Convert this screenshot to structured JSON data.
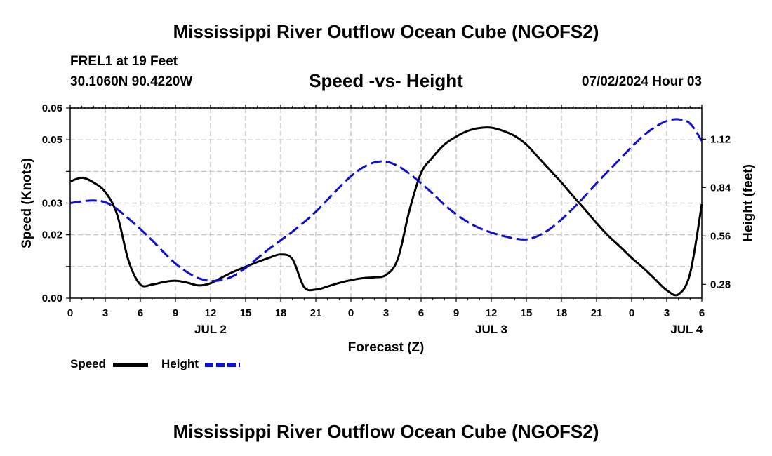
{
  "header": {
    "title": "Mississippi River Outflow Ocean Cube (NGOFS2)",
    "station": "FREL1 at 19 Feet",
    "coords": "30.1060N  90.4220W",
    "subtitle": "Speed -vs- Height",
    "datetime": "07/02/2024 Hour 03"
  },
  "footer": {
    "title": "Mississippi River Outflow Ocean Cube (NGOFS2)"
  },
  "legend": {
    "speed_label": "Speed",
    "height_label": "Height"
  },
  "colors": {
    "speed": "#000000",
    "height": "#1010d0",
    "grid": "#bbbbbb"
  },
  "chart_data": {
    "type": "line",
    "title": "Speed -vs- Height",
    "xlabel": "Forecast (Z)",
    "ylabel": "Speed (Knots)",
    "y2label": "Height (feet)",
    "xlim": [
      0,
      54
    ],
    "ylim": [
      0,
      0.06
    ],
    "y2lim": [
      0.2,
      1.3
    ],
    "x_ticks": [
      {
        "x": 0,
        "label": "0"
      },
      {
        "x": 3,
        "label": "3"
      },
      {
        "x": 6,
        "label": "6"
      },
      {
        "x": 9,
        "label": "9"
      },
      {
        "x": 12,
        "label": "12"
      },
      {
        "x": 15,
        "label": "15"
      },
      {
        "x": 18,
        "label": "18"
      },
      {
        "x": 21,
        "label": "21"
      },
      {
        "x": 24,
        "label": "0"
      },
      {
        "x": 27,
        "label": "3"
      },
      {
        "x": 30,
        "label": "6"
      },
      {
        "x": 33,
        "label": "9"
      },
      {
        "x": 36,
        "label": "12"
      },
      {
        "x": 39,
        "label": "15"
      },
      {
        "x": 42,
        "label": "18"
      },
      {
        "x": 45,
        "label": "21"
      },
      {
        "x": 48,
        "label": "0"
      },
      {
        "x": 51,
        "label": "3"
      },
      {
        "x": 54,
        "label": "6"
      }
    ],
    "day_labels": [
      {
        "x": 12,
        "label": "JUL 2"
      },
      {
        "x": 36,
        "label": "JUL 3"
      },
      {
        "x": 52.7,
        "label": "JUL 4"
      }
    ],
    "y_ticks": [
      {
        "y": 0.0,
        "label": "0.00"
      },
      {
        "y": 0.01,
        "label": ""
      },
      {
        "y": 0.02,
        "label": "0.02"
      },
      {
        "y": 0.03,
        "label": "0.03"
      },
      {
        "y": 0.04,
        "label": ""
      },
      {
        "y": 0.05,
        "label": "0.05"
      },
      {
        "y": 0.06,
        "label": "0.06"
      }
    ],
    "y2_ticks": [
      {
        "y": 0.28,
        "label": "0.28"
      },
      {
        "y": 0.56,
        "label": "0.56"
      },
      {
        "y": 0.84,
        "label": "0.84"
      },
      {
        "y": 1.12,
        "label": "1.12"
      }
    ],
    "series": [
      {
        "name": "Speed",
        "axis": "left",
        "style": "solid",
        "x": [
          0,
          1,
          2,
          3,
          4,
          5,
          6,
          7,
          8,
          9,
          10,
          11,
          12,
          13,
          14,
          15,
          16,
          17,
          18,
          19,
          20,
          21,
          22,
          23,
          24,
          25,
          26,
          27,
          28,
          29,
          30,
          31,
          32,
          33,
          34,
          35,
          36,
          37,
          38,
          39,
          40,
          41,
          42,
          43,
          44,
          45,
          46,
          47,
          48,
          49,
          50,
          51,
          52,
          53,
          54
        ],
        "y": [
          0.0368,
          0.038,
          0.0365,
          0.0335,
          0.0265,
          0.0117,
          0.0043,
          0.0043,
          0.0051,
          0.0055,
          0.0049,
          0.004,
          0.0047,
          0.0066,
          0.0084,
          0.0099,
          0.0114,
          0.0127,
          0.0138,
          0.0123,
          0.0035,
          0.0027,
          0.0037,
          0.0048,
          0.0057,
          0.0063,
          0.0066,
          0.0073,
          0.0123,
          0.0276,
          0.0395,
          0.0445,
          0.0485,
          0.051,
          0.0528,
          0.0537,
          0.0538,
          0.0528,
          0.0512,
          0.0485,
          0.0445,
          0.0405,
          0.0365,
          0.0322,
          0.028,
          0.0237,
          0.0197,
          0.0163,
          0.0127,
          0.0095,
          0.006,
          0.0025,
          0.0012,
          0.0078,
          0.0297
        ]
      },
      {
        "name": "Height",
        "axis": "right",
        "style": "dashed",
        "x": [
          0,
          1,
          2,
          3,
          4,
          5,
          6,
          7,
          8,
          9,
          10,
          11,
          12,
          13,
          14,
          15,
          16,
          17,
          18,
          19,
          20,
          21,
          22,
          23,
          24,
          25,
          26,
          27,
          28,
          29,
          30,
          31,
          32,
          33,
          34,
          35,
          36,
          37,
          38,
          39,
          40,
          41,
          42,
          43,
          44,
          45,
          46,
          47,
          48,
          49,
          50,
          51,
          52,
          53,
          54
        ],
        "y": [
          0.75,
          0.76,
          0.765,
          0.755,
          0.715,
          0.66,
          0.6,
          0.535,
          0.465,
          0.4,
          0.35,
          0.315,
          0.3,
          0.305,
          0.33,
          0.375,
          0.43,
          0.485,
          0.535,
          0.585,
          0.64,
          0.7,
          0.77,
          0.84,
          0.905,
          0.955,
          0.985,
          0.99,
          0.965,
          0.92,
          0.865,
          0.805,
          0.74,
          0.685,
          0.64,
          0.605,
          0.58,
          0.56,
          0.545,
          0.54,
          0.56,
          0.6,
          0.655,
          0.72,
          0.79,
          0.865,
          0.935,
          1.005,
          1.075,
          1.14,
          1.19,
          1.225,
          1.235,
          1.21,
          1.11
        ]
      }
    ]
  }
}
